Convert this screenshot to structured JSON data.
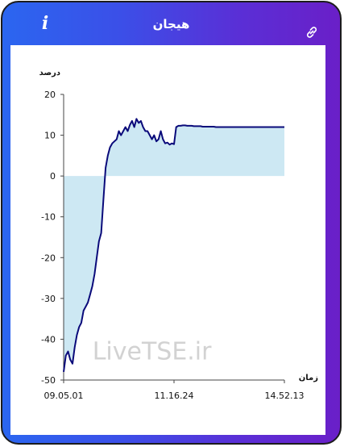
{
  "header": {
    "title": "هیجان",
    "info_icon": "info-icon",
    "link_icon": "link-icon"
  },
  "chart_data": {
    "type": "area",
    "ylabel": "درصد",
    "xlabel": "زمان",
    "ylim": [
      -50,
      20
    ],
    "yticks": [
      "20",
      "10",
      "0",
      "-10",
      "-20",
      "-30",
      "-40",
      "-50"
    ],
    "xticks": [
      "09.05.01",
      "11.16.24",
      "14.52.13"
    ],
    "watermark": "LiveTSE.ir",
    "line_color": "#0a0a7a",
    "fill_color": "#cde8f3",
    "grid": false,
    "series": [
      {
        "x": [
          0,
          1,
          2,
          3,
          4,
          5,
          6,
          7,
          8,
          9,
          10,
          11,
          12,
          13,
          14,
          15,
          16,
          17,
          18,
          19,
          20,
          21,
          22,
          23,
          24,
          25,
          26,
          27,
          28,
          29,
          30,
          31,
          32,
          33,
          34,
          35,
          36,
          37,
          38,
          39,
          40,
          41,
          42,
          43,
          44,
          45,
          46,
          47,
          48,
          49,
          50,
          51,
          52,
          53,
          54,
          55,
          56,
          57,
          58,
          59,
          60,
          61,
          62,
          63,
          64,
          65,
          66,
          67,
          68,
          69,
          70,
          71,
          72,
          73,
          74,
          75,
          76,
          77,
          78,
          79,
          80,
          81,
          82,
          83,
          84,
          85,
          86,
          87,
          88,
          89,
          90,
          91,
          92,
          93,
          94,
          95,
          96,
          97,
          98,
          99,
          100
        ],
        "values": [
          -48,
          -44,
          -43,
          -45,
          -46,
          -42,
          -39,
          -37,
          -36,
          -33,
          -32,
          -31,
          -29,
          -27,
          -24,
          -20,
          -16,
          -14,
          -6,
          2,
          5,
          7,
          8,
          8.5,
          9,
          11,
          10,
          11,
          12,
          11,
          12.5,
          13.5,
          12,
          14,
          13,
          13.5,
          12,
          11,
          11,
          10,
          9,
          10,
          8.5,
          9,
          11,
          9,
          8,
          8.2,
          7.7,
          8,
          7.8,
          12,
          12.3,
          12.3,
          12.4,
          12.4,
          12.3,
          12.3,
          12.3,
          12.2,
          12.2,
          12.2,
          12.2,
          12.1,
          12.1,
          12.1,
          12.1,
          12.1,
          12.1,
          12,
          12,
          12,
          12,
          12,
          12,
          12,
          12,
          12,
          12,
          12,
          12,
          12,
          12,
          12,
          12,
          12,
          12,
          12,
          12,
          12,
          12,
          12,
          12,
          12,
          12,
          12,
          12,
          12,
          12,
          12,
          12
        ]
      }
    ]
  }
}
